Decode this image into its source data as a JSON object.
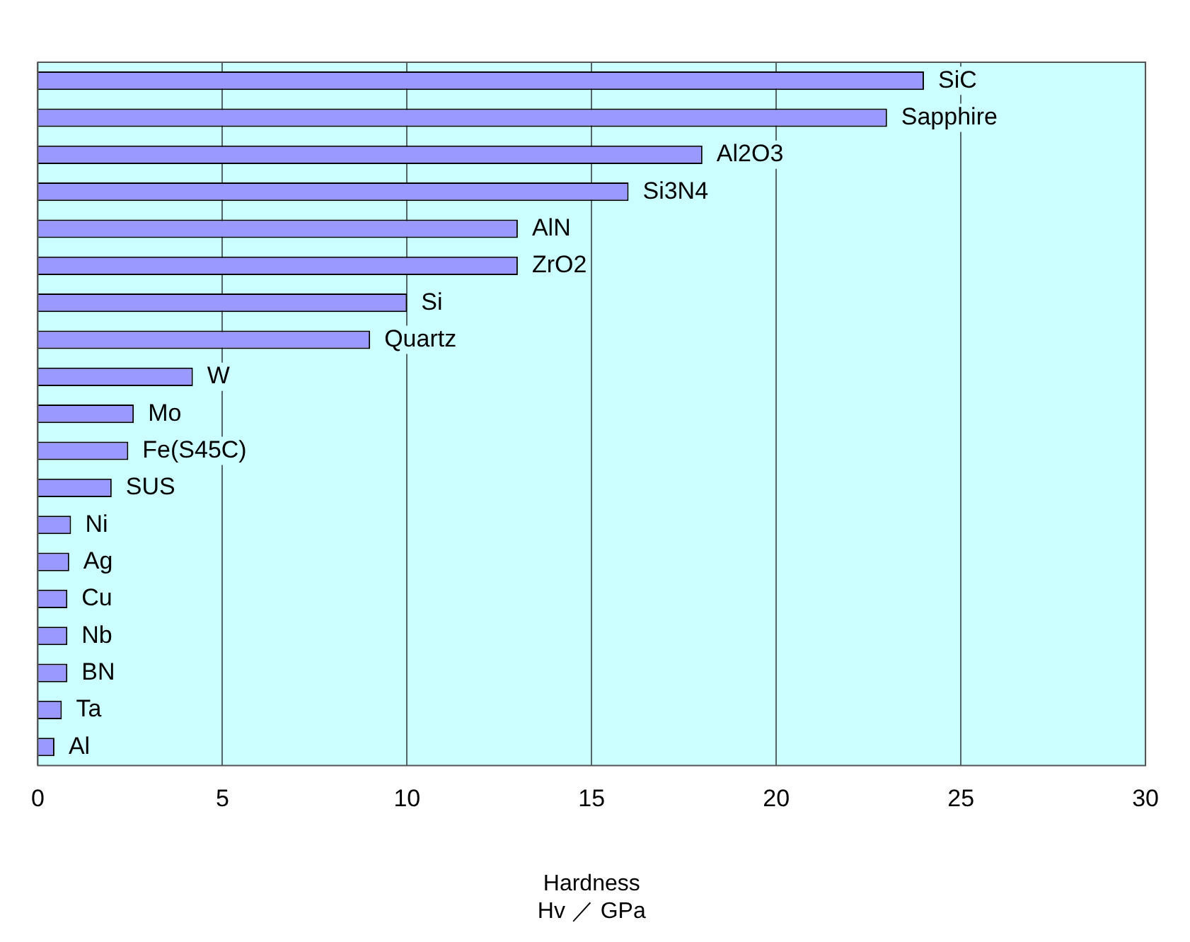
{
  "chart_data": {
    "type": "bar",
    "orientation": "horizontal",
    "xlabel": "Hardness\nHv ／ GPa",
    "categories": [
      "SiC",
      "Sapphire",
      "Al2O3",
      "Si3N4",
      "AlN",
      "ZrO2",
      "Si",
      "Quartz",
      "W",
      "Mo",
      "Fe(S45C)",
      "SUS",
      "Ni",
      "Ag",
      "Cu",
      "Nb",
      "BN",
      "Ta",
      "Al"
    ],
    "values": [
      24,
      23,
      18,
      16,
      13,
      13,
      10,
      9,
      4.2,
      2.6,
      2.45,
      2,
      0.9,
      0.85,
      0.8,
      0.8,
      0.8,
      0.65,
      0.45
    ],
    "color": "#9999ff",
    "xlim": [
      0,
      30
    ],
    "xticks": [
      0,
      5,
      10,
      15,
      20,
      25,
      30
    ],
    "grid": "x",
    "tick_labels": "x",
    "legend": false
  }
}
